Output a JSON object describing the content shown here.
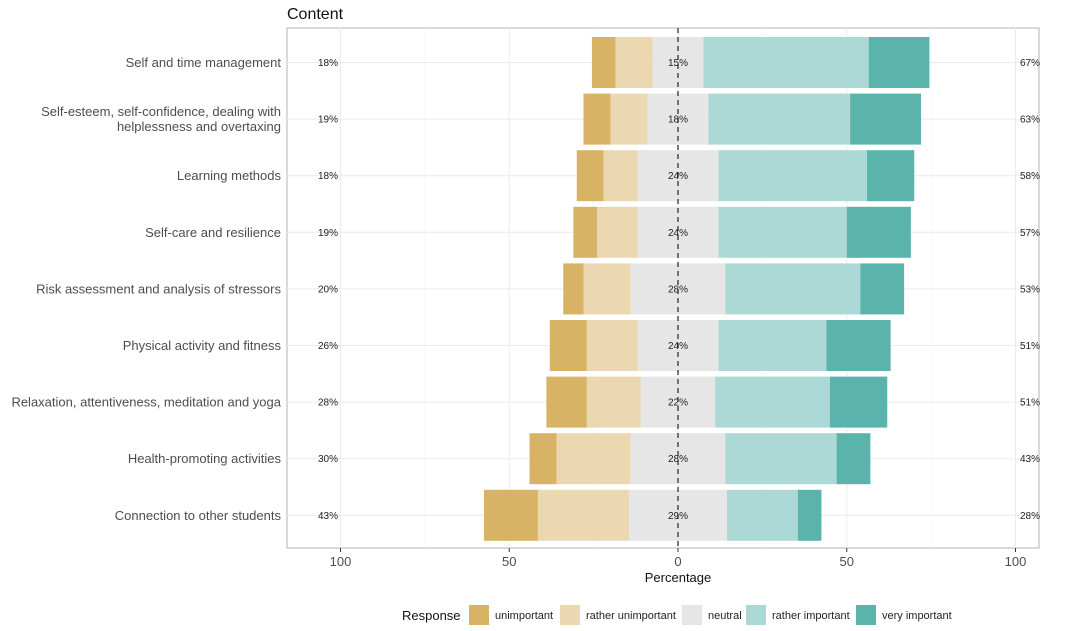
{
  "chart_data": {
    "type": "bar",
    "orientation": "horizontal",
    "stacking": "diverging",
    "title": "Content",
    "xlabel": "Percentage",
    "xlim": [
      -100,
      100
    ],
    "xticks": [
      -100,
      -50,
      0,
      50,
      100
    ],
    "xtick_labels": [
      "100",
      "50",
      "0",
      "50",
      "100"
    ],
    "grid": true,
    "legend": {
      "title": "Response",
      "placement": "bottom"
    },
    "colors": {
      "unimportant": "#d8b365",
      "rather unimportant": "#ebd8b0",
      "neutral": "#e6e6e6",
      "rather important": "#acd9d5",
      "very important": "#5ab4ac"
    },
    "series_order": [
      "unimportant",
      "rather unimportant",
      "neutral",
      "rather important",
      "very important"
    ],
    "categories": [
      "Self and time management",
      "Self-esteem, self-confidence, dealing with\nhelplessness and overtaxing",
      "Learning methods",
      "Self-care and resilience",
      "Risk assessment and analysis of stressors",
      "Physical activity and fitness",
      "Relaxation, attentiveness, meditation and yoga",
      "Health-promoting activities",
      "Connection to other students"
    ],
    "series": [
      {
        "name": "unimportant",
        "values": [
          7,
          8,
          8,
          7,
          6,
          11,
          12,
          8,
          16
        ]
      },
      {
        "name": "rather unimportant",
        "values": [
          11,
          11,
          10,
          12,
          14,
          15,
          16,
          22,
          27
        ]
      },
      {
        "name": "neutral",
        "values": [
          15,
          18,
          24,
          24,
          28,
          24,
          22,
          28,
          29
        ]
      },
      {
        "name": "rather important",
        "values": [
          49,
          42,
          44,
          38,
          40,
          32,
          34,
          33,
          21
        ]
      },
      {
        "name": "very important",
        "values": [
          18,
          21,
          14,
          19,
          13,
          19,
          17,
          10,
          7
        ]
      }
    ],
    "left_labels": [
      "18%",
      "19%",
      "18%",
      "19%",
      "20%",
      "26%",
      "28%",
      "30%",
      "43%"
    ],
    "center_labels": [
      "15%",
      "18%",
      "24%",
      "24%",
      "28%",
      "24%",
      "22%",
      "28%",
      "29%"
    ],
    "right_labels": [
      "67%",
      "63%",
      "58%",
      "57%",
      "53%",
      "51%",
      "51%",
      "43%",
      "28%"
    ]
  }
}
